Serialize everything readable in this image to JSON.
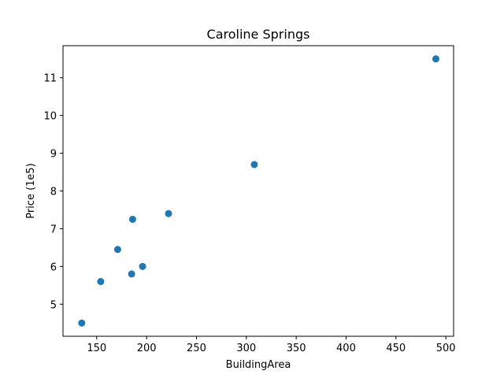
{
  "chart_data": {
    "type": "scatter",
    "title": "Caroline Springs",
    "xlabel": "BuildingArea",
    "ylabel": "Price (1e5)",
    "xlim": [
      116.2,
      507.8
    ],
    "ylim": [
      4.15,
      11.85
    ],
    "xticks": [
      150,
      200,
      250,
      300,
      350,
      400,
      450,
      500
    ],
    "yticks": [
      5,
      6,
      7,
      8,
      9,
      10,
      11
    ],
    "grid": false,
    "color": "#1f77b4",
    "series": [
      {
        "x": [
          135,
          154,
          171,
          185,
          186,
          196,
          222,
          308,
          490
        ],
        "y": [
          4.5,
          5.6,
          6.45,
          5.8,
          7.25,
          6.0,
          7.4,
          8.7,
          11.5
        ]
      }
    ]
  }
}
